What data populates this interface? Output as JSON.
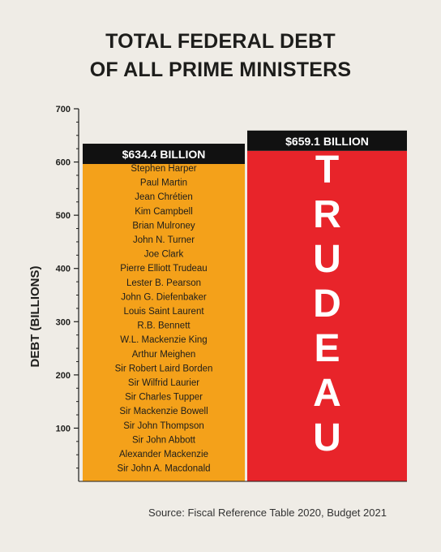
{
  "title_line1": "TOTAL FEDERAL DEBT",
  "title_line2": "OF ALL PRIME MINISTERS",
  "source": "Source: Fiscal Reference Table 2020, Budget 2021",
  "chart_data": {
    "type": "bar",
    "ylabel": "DEBT (BILLIONS)",
    "ylim": [
      0,
      700
    ],
    "yticks": [
      100,
      200,
      300,
      400,
      500,
      600,
      700
    ],
    "colors": {
      "others": "#f4a11a",
      "trudeau": "#e8242a",
      "label_bg": "#111111"
    },
    "bars": [
      {
        "value": 634.4,
        "value_label": "$634.4 BILLION",
        "members": [
          "Stephen Harper",
          "Paul Martin",
          "Jean Chrétien",
          "Kim Campbell",
          "Brian Mulroney",
          "John N. Turner",
          "Joe Clark",
          "Pierre Elliott Trudeau",
          "Lester B. Pearson",
          "John G. Diefenbaker",
          "Louis Saint Laurent",
          "R.B. Bennett",
          "W.L. Mackenzie King",
          "Arthur Meighen",
          "Sir Robert Laird Borden",
          "Sir Wilfrid Laurier",
          "Sir Charles Tupper",
          "Sir Mackenzie Bowell",
          "Sir John Thompson",
          "Sir John Abbott",
          "Alexander Mackenzie",
          "Sir John A. Macdonald"
        ]
      },
      {
        "value": 659.1,
        "value_label": "$659.1 BILLION",
        "big_label": "TRUDEAU"
      }
    ]
  }
}
